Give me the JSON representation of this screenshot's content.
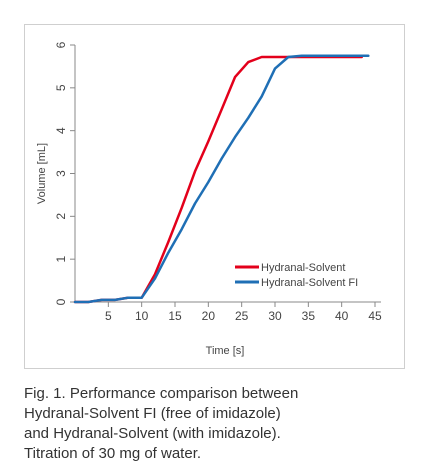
{
  "chart_data": {
    "type": "line",
    "xlabel": "Time [s]",
    "ylabel": "Volume [mL]",
    "xlim": [
      0,
      45
    ],
    "ylim": [
      0,
      6
    ],
    "xticks": [
      5,
      10,
      15,
      20,
      25,
      30,
      35,
      40,
      45
    ],
    "yticks": [
      0,
      1,
      2,
      3,
      4,
      5,
      6
    ],
    "grid": false,
    "legend_position": "lower-right",
    "series": [
      {
        "name": "Hydranal-Solvent",
        "color": "#e3001b",
        "x": [
          0,
          2,
          4,
          6,
          8,
          10,
          12,
          14,
          16,
          18,
          20,
          22,
          24,
          26,
          28,
          30,
          32,
          34,
          36,
          38,
          40,
          42,
          43
        ],
        "y": [
          0,
          0,
          0.05,
          0.05,
          0.1,
          0.1,
          0.65,
          1.4,
          2.2,
          3.05,
          3.75,
          4.5,
          5.25,
          5.6,
          5.72,
          5.72,
          5.72,
          5.72,
          5.72,
          5.72,
          5.72,
          5.72,
          5.72
        ]
      },
      {
        "name": "Hydranal-Solvent FI",
        "color": "#1f6fb5",
        "x": [
          0,
          2,
          4,
          6,
          8,
          10,
          12,
          14,
          16,
          18,
          20,
          22,
          24,
          26,
          28,
          30,
          32,
          34,
          36,
          38,
          40,
          42,
          44
        ],
        "y": [
          0,
          0,
          0.05,
          0.05,
          0.1,
          0.1,
          0.55,
          1.15,
          1.7,
          2.3,
          2.8,
          3.35,
          3.85,
          4.3,
          4.8,
          5.45,
          5.72,
          5.75,
          5.75,
          5.75,
          5.75,
          5.75,
          5.75
        ]
      }
    ]
  },
  "caption": {
    "line1": "Fig. 1. Performance comparison between",
    "line2": "Hydranal-Solvent FI (free of imidazole)",
    "line3": "and Hydranal-Solvent (with imidazole).",
    "line4": "Titration of 30 mg of water."
  }
}
